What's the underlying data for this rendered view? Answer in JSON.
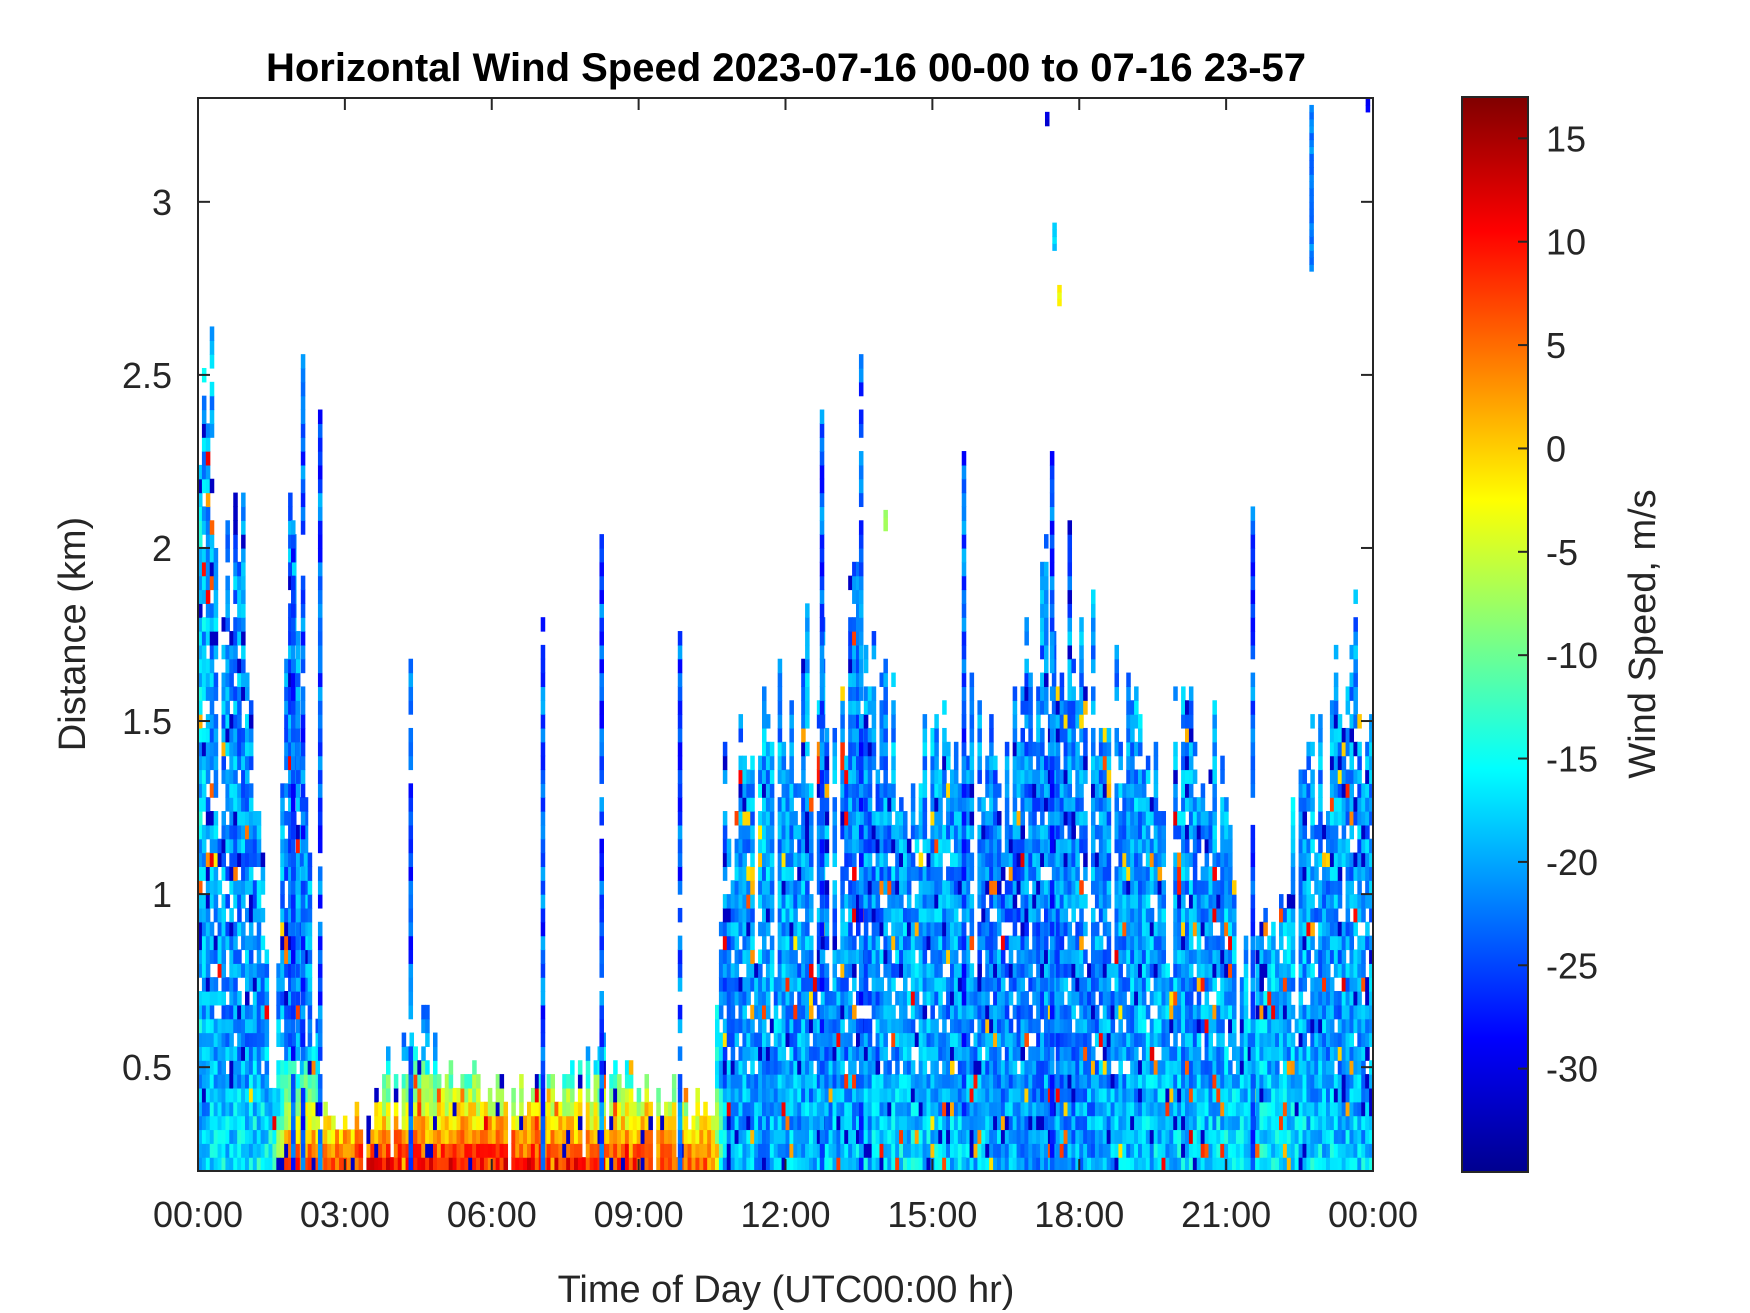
{
  "chart_data": {
    "type": "heatmap",
    "title": "Horizontal Wind Speed 2023-07-16 00-00 to 07-16 23-57",
    "xlabel": "Time of Day (UTC00:00 hr)",
    "ylabel": "Distance (km)",
    "colorbar_label": "Wind Speed, m/s",
    "x_ticks": [
      "00:00",
      "03:00",
      "06:00",
      "09:00",
      "12:00",
      "15:00",
      "18:00",
      "21:00",
      "00:00"
    ],
    "xlim_hours": [
      0,
      24
    ],
    "y_ticks": [
      "0.5",
      "1",
      "1.5",
      "2",
      "2.5",
      "3"
    ],
    "y_tick_values": [
      0.5,
      1,
      1.5,
      2,
      2.5,
      3
    ],
    "ylim": [
      0.2,
      3.3
    ],
    "colorbar_ticks": [
      "15",
      "10",
      "5",
      "0",
      "-5",
      "-10",
      "-15",
      "-20",
      "-25",
      "-30"
    ],
    "colorbar_tick_values": [
      15,
      10,
      5,
      0,
      -5,
      -10,
      -15,
      -20,
      -25,
      -30
    ],
    "clim": [
      -35,
      17
    ],
    "colormap": "jet",
    "colormap_stops": [
      "#00008f",
      "#0000ff",
      "#00ffff",
      "#ffff00",
      "#ff0000",
      "#800000"
    ],
    "data_profile": [
      {
        "t": 0.0,
        "top": 2.1,
        "low": -22,
        "mid": -18
      },
      {
        "t": 0.15,
        "top": 2.6,
        "low": -18,
        "mid": -20
      },
      {
        "t": 0.5,
        "top": 2.0,
        "low": -17,
        "mid": -21
      },
      {
        "t": 1.0,
        "top": 1.9,
        "low": -16,
        "mid": -21
      },
      {
        "t": 1.5,
        "top": 0.3,
        "low": -15,
        "mid": -20
      },
      {
        "t": 1.8,
        "top": 2.0,
        "low": 8,
        "mid": -22
      },
      {
        "t": 2.5,
        "top": 0.32,
        "low": 6,
        "mid": -20
      },
      {
        "t": 3.5,
        "top": 0.35,
        "low": 9,
        "mid": -18
      },
      {
        "t": 4.3,
        "top": 0.6,
        "low": 10,
        "mid": -20
      },
      {
        "t": 5.5,
        "top": 0.45,
        "low": 10,
        "mid": -18
      },
      {
        "t": 7.0,
        "top": 0.4,
        "low": 9,
        "mid": -18
      },
      {
        "t": 8.2,
        "top": 0.5,
        "low": 8,
        "mid": -19
      },
      {
        "t": 9.5,
        "top": 0.4,
        "low": 7,
        "mid": -18
      },
      {
        "t": 10.5,
        "top": 0.35,
        "low": 4,
        "mid": -17
      },
      {
        "t": 10.7,
        "top": 1.2,
        "low": -18,
        "mid": -22
      },
      {
        "t": 11.5,
        "top": 1.4,
        "low": -20,
        "mid": -20
      },
      {
        "t": 12.5,
        "top": 1.6,
        "low": -19,
        "mid": -21
      },
      {
        "t": 13.5,
        "top": 1.7,
        "low": -18,
        "mid": -22
      },
      {
        "t": 14.5,
        "top": 1.3,
        "low": -17,
        "mid": -20
      },
      {
        "t": 15.5,
        "top": 1.5,
        "low": -18,
        "mid": -21
      },
      {
        "t": 16.5,
        "top": 1.3,
        "low": -19,
        "mid": -22
      },
      {
        "t": 17.5,
        "top": 1.9,
        "low": -21,
        "mid": -22
      },
      {
        "t": 18.5,
        "top": 1.5,
        "low": -20,
        "mid": -21
      },
      {
        "t": 19.5,
        "top": 1.4,
        "low": -18,
        "mid": -20
      },
      {
        "t": 20.5,
        "top": 1.5,
        "low": -17,
        "mid": -21
      },
      {
        "t": 21.5,
        "top": 0.7,
        "low": -16,
        "mid": -19
      },
      {
        "t": 22.5,
        "top": 1.3,
        "low": -17,
        "mid": -20
      },
      {
        "t": 23.5,
        "top": 1.6,
        "low": -18,
        "mid": -21
      },
      {
        "t": 24.0,
        "top": 1.6,
        "low": -18,
        "mid": -21
      }
    ],
    "spikes": [
      {
        "t": 1.9,
        "top": 2.1
      },
      {
        "t": 2.1,
        "top": 2.55
      },
      {
        "t": 2.45,
        "top": 2.38
      },
      {
        "t": 4.3,
        "top": 1.65
      },
      {
        "t": 7.0,
        "top": 1.78
      },
      {
        "t": 8.2,
        "top": 2.03
      },
      {
        "t": 9.8,
        "top": 1.75
      },
      {
        "t": 12.7,
        "top": 2.4
      },
      {
        "t": 13.5,
        "top": 2.55
      },
      {
        "t": 15.6,
        "top": 2.28
      },
      {
        "t": 17.4,
        "top": 2.25
      },
      {
        "t": 21.5,
        "top": 2.1
      }
    ],
    "high_blobs": [
      {
        "t": 17.3,
        "z0": 3.22,
        "z1": 3.26,
        "v": -32
      },
      {
        "t": 17.45,
        "z0": 2.86,
        "z1": 2.93,
        "v": -18
      },
      {
        "t": 17.55,
        "z0": 2.7,
        "z1": 2.76,
        "v": -3
      },
      {
        "t": 22.7,
        "z0": 2.8,
        "z1": 3.28,
        "v": -22
      },
      {
        "t": 23.85,
        "z0": 3.26,
        "z1": 3.29,
        "v": -28
      },
      {
        "t": 14.0,
        "z0": 2.05,
        "z1": 2.1,
        "v": -6
      }
    ]
  }
}
